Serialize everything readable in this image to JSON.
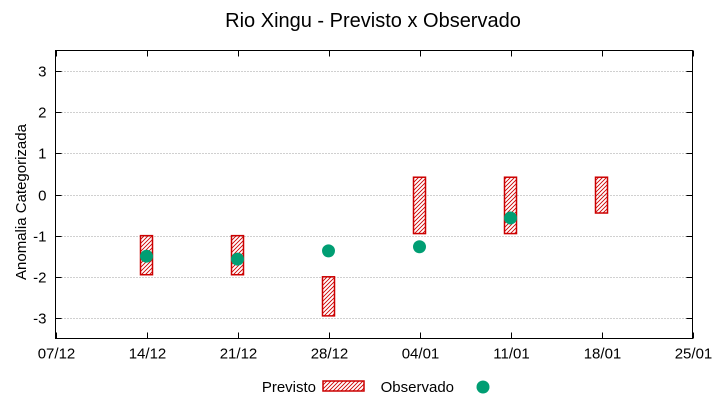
{
  "chart_data": {
    "type": "range-dot",
    "title": "Rio Xingu - Previsto x Observado",
    "xlabel": "",
    "ylabel": "Anomalia Categorizada",
    "xlim": [
      "07/12",
      "25/01"
    ],
    "ylim": [
      -3.5,
      3.5
    ],
    "grid": true,
    "legend_position": "bottom",
    "x_tick_labels": [
      "07/12",
      "14/12",
      "21/12",
      "28/12",
      "04/01",
      "11/01",
      "18/01",
      "25/01"
    ],
    "y_ticks": [
      3,
      2,
      1,
      0,
      -1,
      -2,
      -3
    ],
    "series": [
      {
        "name": "Previsto",
        "kind": "range-box",
        "color": "#cc0000",
        "points": [
          {
            "x": "14/12",
            "low": -1.95,
            "high": -1.0
          },
          {
            "x": "21/12",
            "low": -1.95,
            "high": -1.0
          },
          {
            "x": "28/12",
            "low": -2.95,
            "high": -2.0
          },
          {
            "x": "04/01",
            "low": -0.95,
            "high": 0.42
          },
          {
            "x": "11/01",
            "low": -0.95,
            "high": 0.42
          },
          {
            "x": "18/01",
            "low": -0.45,
            "high": 0.42
          }
        ]
      },
      {
        "name": "Observado",
        "kind": "point",
        "color": "#009e73",
        "points": [
          {
            "x": "14/12",
            "y": -1.5
          },
          {
            "x": "21/12",
            "y": -1.57
          },
          {
            "x": "28/12",
            "y": -1.37
          },
          {
            "x": "04/01",
            "y": -1.27
          },
          {
            "x": "11/01",
            "y": -0.57
          }
        ]
      }
    ]
  }
}
